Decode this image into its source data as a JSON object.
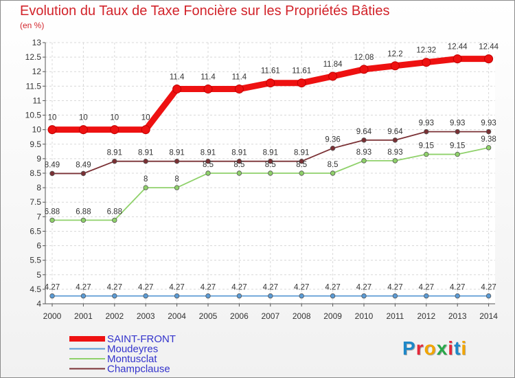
{
  "title": "Evolution du Taux de Taxe Foncière sur les Propriétés Bâties",
  "unit_label": "(en %)",
  "logo": {
    "text": "Proxiti",
    "letter_colors": [
      "#1e88c8",
      "#e5283a",
      "#f2a500",
      "#2aa84a",
      "#e5283a",
      "#1e88c8",
      "#f2a500"
    ]
  },
  "chart_data": {
    "type": "line",
    "title": "Evolution du Taux de Taxe Foncière sur les Propriétés Bâties",
    "ylabel": "(en %)",
    "xlabel": "",
    "ylim": [
      4,
      13
    ],
    "y_ticks": [
      "4",
      "4.5",
      "5",
      "5.5",
      "6",
      "6.5",
      "7",
      "7.5",
      "8",
      "8.5",
      "9",
      "9.5",
      "10",
      "10.5",
      "11",
      "11.5",
      "12",
      "12.5",
      "13"
    ],
    "x": [
      "2000",
      "2001",
      "2002",
      "2003",
      "2004",
      "2005",
      "2006",
      "2007",
      "2008",
      "2009",
      "2010",
      "2011",
      "2012",
      "2013",
      "2014"
    ],
    "grid": true,
    "series": [
      {
        "name": "SAINT-FRONT",
        "color": "#ee1111",
        "values": [
          10,
          10,
          10,
          10,
          11.4,
          11.4,
          11.4,
          11.61,
          11.61,
          11.84,
          12.08,
          12.2,
          12.32,
          12.44,
          12.44
        ],
        "labels": [
          "10",
          "10",
          "10",
          "10",
          "11.4",
          "11.4",
          "11.4",
          "11.61",
          "11.61",
          "11.84",
          "12.08",
          "12.2",
          "12.32",
          "12.44",
          "12.44"
        ]
      },
      {
        "name": "Moudeyres",
        "color": "#5b9bd5",
        "values": [
          4.27,
          4.27,
          4.27,
          4.27,
          4.27,
          4.27,
          4.27,
          4.27,
          4.27,
          4.27,
          4.27,
          4.27,
          4.27,
          4.27,
          4.27
        ],
        "labels": [
          "4.27",
          "4.27",
          "4.27",
          "4.27",
          "4.27",
          "4.27",
          "4.27",
          "4.27",
          "4.27",
          "4.27",
          "4.27",
          "4.27",
          "4.27",
          "4.27",
          "4.27"
        ]
      },
      {
        "name": "Montusclat",
        "color": "#8fd16a",
        "values": [
          6.88,
          6.88,
          6.88,
          8,
          8,
          8.5,
          8.5,
          8.5,
          8.5,
          8.5,
          8.93,
          8.93,
          9.15,
          9.15,
          9.38
        ],
        "labels": [
          "6.88",
          "6.88",
          "6.88",
          "8",
          "8",
          "8.5",
          "8.5",
          "8.5",
          "8.5",
          "8.5",
          "8.93",
          "8.93",
          "9.15",
          "9.15",
          "9.38"
        ]
      },
      {
        "name": "Champclause",
        "color": "#7a3034",
        "values": [
          8.49,
          8.49,
          8.91,
          8.91,
          8.91,
          8.91,
          8.91,
          8.91,
          8.91,
          9.36,
          9.64,
          9.64,
          9.93,
          9.93,
          9.93
        ],
        "labels": [
          "8.49",
          "8.49",
          "8.91",
          "8.91",
          "8.91",
          "8.91",
          "8.91",
          "8.91",
          "8.91",
          "9.36",
          "9.64",
          "9.64",
          "9.93",
          "9.93",
          "9.93"
        ]
      }
    ],
    "legend": {
      "placement": "bottom-left",
      "entries": [
        "SAINT-FRONT",
        "Moudeyres",
        "Montusclat",
        "Champclause"
      ]
    }
  }
}
